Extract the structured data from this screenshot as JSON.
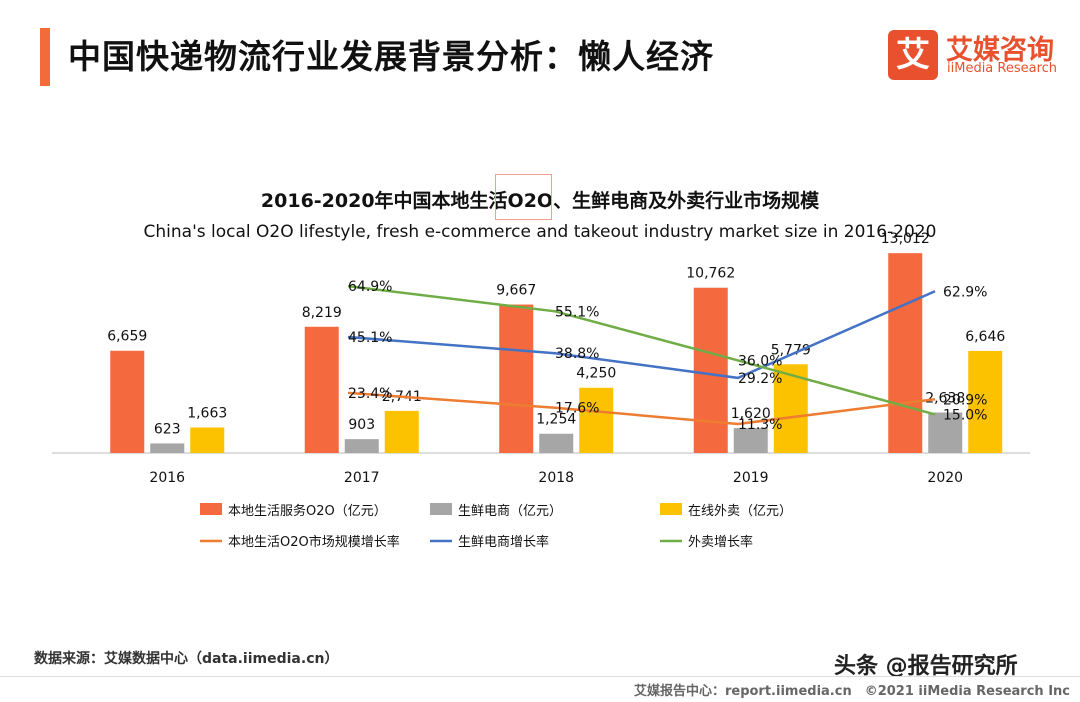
{
  "header": {
    "title": "中国快递物流行业发展背景分析：懒人经济",
    "logo_mark": "艾",
    "logo_cn": "艾媒咨询",
    "logo_en": "iiMedia Research"
  },
  "colors": {
    "accent": "#f26b38",
    "o2o_bar": "#f4693d",
    "fresh_bar": "#a6a6a6",
    "takeout_bar": "#fcc200",
    "o2o_line": "#ed7d31",
    "fresh_line": "#4472c4",
    "takeout_line": "#70ad47"
  },
  "chart_data": {
    "type": "bar",
    "title": "2016-2020年中国本地生活O2O、生鲜电商及外卖行业市场规模",
    "subtitle": "China's local O2O lifestyle, fresh e-commerce and takeout industry market size in 2016-2020",
    "categories": [
      "2016",
      "2017",
      "2018",
      "2019",
      "2020"
    ],
    "series": [
      {
        "name": "本地生活服务O2O（亿元）",
        "kind": "bar",
        "values": [
          6659,
          8219,
          9667,
          10762,
          13012
        ],
        "labels": [
          "6,659",
          "8,219",
          "9,667",
          "10,762",
          "13,012"
        ]
      },
      {
        "name": "生鲜电商（亿元）",
        "kind": "bar",
        "values": [
          623,
          903,
          1254,
          1620,
          2638
        ],
        "labels": [
          "623",
          "903",
          "1,254",
          "1,620",
          "2,638"
        ]
      },
      {
        "name": "在线外卖（亿元）",
        "kind": "bar",
        "values": [
          1663,
          2741,
          4250,
          5779,
          6646
        ],
        "labels": [
          "1,663",
          "2,741",
          "4,250",
          "5,779",
          "6,646"
        ]
      },
      {
        "name": "本地生活O2O市场规模增长率",
        "kind": "line",
        "values": [
          null,
          23.4,
          17.6,
          11.3,
          20.9
        ],
        "labels": [
          "",
          "23.4%",
          "17.6%",
          "11.3%",
          "20.9%"
        ]
      },
      {
        "name": "生鲜电商增长率",
        "kind": "line",
        "values": [
          null,
          45.1,
          38.8,
          29.2,
          62.9
        ],
        "labels": [
          "",
          "45.1%",
          "38.8%",
          "29.2%",
          "62.9%"
        ]
      },
      {
        "name": "外卖增长率",
        "kind": "line",
        "values": [
          null,
          64.9,
          55.1,
          36.0,
          15.0
        ],
        "labels": [
          "",
          "64.9%",
          "55.1%",
          "36.0%",
          "15.0%"
        ]
      }
    ],
    "y_bar_range": [
      0,
      14000
    ],
    "y_line_range": [
      0,
      70
    ],
    "legend_position": "bottom",
    "grid": false
  },
  "source": "数据来源：艾媒数据中心（data.iimedia.cn）",
  "watermark": "头条 @报告研究所",
  "footer": "艾媒报告中心：report.iimedia.cn　©2021  iiMedia Research  Inc"
}
